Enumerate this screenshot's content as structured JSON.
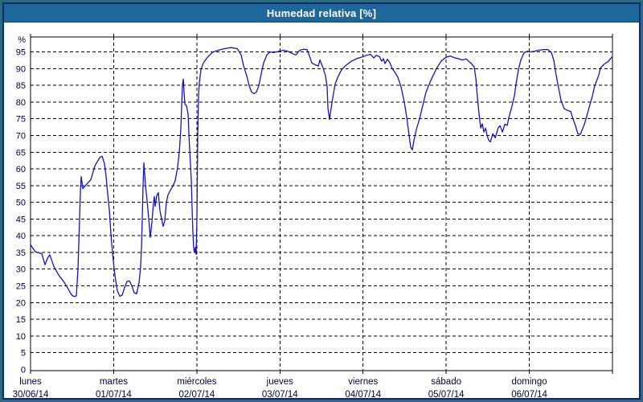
{
  "window": {
    "title": "Humedad relativa [%]"
  },
  "colors": {
    "titlebar_bg": "#1d689b",
    "frame_teal": "#2c6b7d",
    "inner_border_navy": "#0b2a7a",
    "plot_line": "#1414bb",
    "grid": "#000000",
    "label_text": "#000040",
    "title_text": "#ffffff"
  },
  "chart_data": {
    "type": "line",
    "title": "Humedad relativa [%]",
    "y_axis": {
      "unit_label": "%",
      "tick_min": 0,
      "tick_max": 95,
      "tick_step": 5,
      "ylim": [
        0,
        99.5
      ],
      "grid": "dashed"
    },
    "x_axis": {
      "xlim_days": [
        0,
        7
      ],
      "grid": "dashed",
      "days": [
        {
          "name": "lunes",
          "date": "30/06/14"
        },
        {
          "name": "martes",
          "date": "01/07/14"
        },
        {
          "name": "miércoles",
          "date": "02/07/14"
        },
        {
          "name": "jueves",
          "date": "03/07/14"
        },
        {
          "name": "viernes",
          "date": "04/07/14"
        },
        {
          "name": "sábado",
          "date": "05/07/14"
        },
        {
          "name": "domingo",
          "date": "06/07/14"
        }
      ]
    },
    "series": [
      {
        "name": "humedad_relativa_pct",
        "color": "#1414bb",
        "points": [
          [
            0,
            37.3
          ],
          [
            0.029,
            36.2
          ],
          [
            0.058,
            35.2
          ],
          [
            0.097,
            34.9
          ],
          [
            0.135,
            34.6
          ],
          [
            0.174,
            31.3
          ],
          [
            0.203,
            33.2
          ],
          [
            0.232,
            34.3
          ],
          [
            0.28,
            30.8
          ],
          [
            0.338,
            28.2
          ],
          [
            0.406,
            26
          ],
          [
            0.454,
            24
          ],
          [
            0.493,
            22.3
          ],
          [
            0.522,
            21.8
          ],
          [
            0.551,
            22
          ],
          [
            0.57,
            30
          ],
          [
            0.59,
            45
          ],
          [
            0.599,
            53
          ],
          [
            0.609,
            57.7
          ],
          [
            0.629,
            54.1
          ],
          [
            0.667,
            55.2
          ],
          [
            0.725,
            56.8
          ],
          [
            0.773,
            60.9
          ],
          [
            0.832,
            63.4
          ],
          [
            0.861,
            63.8
          ],
          [
            0.89,
            61.4
          ],
          [
            0.909,
            57.7
          ],
          [
            0.928,
            52.5
          ],
          [
            0.948,
            47.5
          ],
          [
            0.967,
            40.5
          ],
          [
            0.986,
            34.9
          ],
          [
            1.006,
            30.1
          ],
          [
            1.025,
            26.5
          ],
          [
            1.044,
            23.5
          ],
          [
            1.073,
            21.9
          ],
          [
            1.102,
            22.2
          ],
          [
            1.131,
            24.5
          ],
          [
            1.16,
            26.3
          ],
          [
            1.189,
            26.5
          ],
          [
            1.218,
            25
          ],
          [
            1.247,
            22.9
          ],
          [
            1.276,
            22.6
          ],
          [
            1.305,
            26
          ],
          [
            1.325,
            30.8
          ],
          [
            1.334,
            36.3
          ],
          [
            1.344,
            45
          ],
          [
            1.354,
            55
          ],
          [
            1.363,
            61.8
          ],
          [
            1.383,
            55
          ],
          [
            1.402,
            50.5
          ],
          [
            1.421,
            45.2
          ],
          [
            1.441,
            39.5
          ],
          [
            1.46,
            44
          ],
          [
            1.479,
            50
          ],
          [
            1.489,
            51.7
          ],
          [
            1.499,
            48.8
          ],
          [
            1.518,
            52
          ],
          [
            1.537,
            52.9
          ],
          [
            1.557,
            47.5
          ],
          [
            1.576,
            45
          ],
          [
            1.595,
            42.8
          ],
          [
            1.615,
            44.5
          ],
          [
            1.634,
            50
          ],
          [
            1.653,
            52.2
          ],
          [
            1.682,
            53.6
          ],
          [
            1.711,
            54.8
          ],
          [
            1.74,
            56.5
          ],
          [
            1.769,
            60.5
          ],
          [
            1.789,
            65
          ],
          [
            1.808,
            72
          ],
          [
            1.818,
            79
          ],
          [
            1.827,
            85
          ],
          [
            1.837,
            86.9
          ],
          [
            1.847,
            83
          ],
          [
            1.856,
            79.4
          ],
          [
            1.876,
            78.9
          ],
          [
            1.895,
            76.5
          ],
          [
            1.905,
            70.5
          ],
          [
            1.914,
            65.7
          ],
          [
            1.934,
            56.8
          ],
          [
            1.943,
            48.1
          ],
          [
            1.953,
            40.9
          ],
          [
            1.963,
            36.1
          ],
          [
            1.972,
            35
          ],
          [
            1.982,
            36.5
          ],
          [
            1.992,
            34.4
          ],
          [
            2.001,
            45
          ],
          [
            2.006,
            57.7
          ],
          [
            2.011,
            70
          ],
          [
            2.021,
            81.8
          ],
          [
            2.03,
            85.7
          ],
          [
            2.05,
            89.7
          ],
          [
            2.079,
            91.7
          ],
          [
            2.127,
            93.4
          ],
          [
            2.195,
            95
          ],
          [
            2.272,
            95.6
          ],
          [
            2.34,
            96
          ],
          [
            2.408,
            96.3
          ],
          [
            2.485,
            96
          ],
          [
            2.533,
            94.1
          ],
          [
            2.562,
            90.9
          ],
          [
            2.601,
            87.8
          ],
          [
            2.63,
            84.9
          ],
          [
            2.659,
            83
          ],
          [
            2.688,
            82.5
          ],
          [
            2.717,
            83
          ],
          [
            2.746,
            84.9
          ],
          [
            2.775,
            88.5
          ],
          [
            2.804,
            91.7
          ],
          [
            2.843,
            94.1
          ],
          [
            2.881,
            95
          ],
          [
            2.92,
            94.8
          ],
          [
            2.959,
            95
          ],
          [
            2.997,
            95.3
          ],
          [
            3.046,
            95.5
          ],
          [
            3.094,
            95.2
          ],
          [
            3.143,
            94.6
          ],
          [
            3.191,
            94.1
          ],
          [
            3.239,
            95.5
          ],
          [
            3.287,
            95.8
          ],
          [
            3.326,
            95.7
          ],
          [
            3.355,
            93.8
          ],
          [
            3.384,
            91.7
          ],
          [
            3.423,
            91.2
          ],
          [
            3.461,
            90.8
          ],
          [
            3.481,
            92.6
          ],
          [
            3.519,
            90.2
          ],
          [
            3.548,
            87.8
          ],
          [
            3.568,
            84.5
          ],
          [
            3.577,
            78.2
          ],
          [
            3.597,
            74.8
          ],
          [
            3.616,
            78.2
          ],
          [
            3.635,
            81.3
          ],
          [
            3.664,
            85.4
          ],
          [
            3.693,
            87.3
          ],
          [
            3.742,
            89.7
          ],
          [
            3.79,
            90.9
          ],
          [
            3.858,
            92.2
          ],
          [
            3.925,
            93
          ],
          [
            3.993,
            93.5
          ],
          [
            4.041,
            94
          ],
          [
            4.09,
            94.3
          ],
          [
            4.128,
            93.2
          ],
          [
            4.157,
            94
          ],
          [
            4.196,
            93.6
          ],
          [
            4.225,
            92.2
          ],
          [
            4.244,
            93
          ],
          [
            4.264,
            91.5
          ],
          [
            4.293,
            92.8
          ],
          [
            4.322,
            91.8
          ],
          [
            4.351,
            90
          ],
          [
            4.38,
            89
          ],
          [
            4.418,
            87.5
          ],
          [
            4.457,
            84.5
          ],
          [
            4.496,
            80
          ],
          [
            4.525,
            75.5
          ],
          [
            4.554,
            70
          ],
          [
            4.573,
            66.5
          ],
          [
            4.593,
            65.7
          ],
          [
            4.612,
            68.5
          ],
          [
            4.641,
            71.8
          ],
          [
            4.68,
            75
          ],
          [
            4.709,
            78
          ],
          [
            4.757,
            83
          ],
          [
            4.825,
            87
          ],
          [
            4.883,
            90
          ],
          [
            4.941,
            92.3
          ],
          [
            4.999,
            93.4
          ],
          [
            5.047,
            93.8
          ],
          [
            5.096,
            93.3
          ],
          [
            5.144,
            93
          ],
          [
            5.192,
            92.6
          ],
          [
            5.241,
            92.9
          ],
          [
            5.27,
            92.2
          ],
          [
            5.299,
            91.6
          ],
          [
            5.337,
            90.5
          ],
          [
            5.357,
            87
          ],
          [
            5.376,
            81.3
          ],
          [
            5.395,
            76.5
          ],
          [
            5.415,
            72.2
          ],
          [
            5.434,
            73.5
          ],
          [
            5.453,
            71
          ],
          [
            5.473,
            72.2
          ],
          [
            5.492,
            70
          ],
          [
            5.511,
            68.6
          ],
          [
            5.531,
            68.1
          ],
          [
            5.56,
            70.5
          ],
          [
            5.589,
            69.3
          ],
          [
            5.627,
            72.4
          ],
          [
            5.647,
            72.9
          ],
          [
            5.676,
            71
          ],
          [
            5.705,
            73.4
          ],
          [
            5.734,
            73
          ],
          [
            5.753,
            75.3
          ],
          [
            5.792,
            78.9
          ],
          [
            5.821,
            82
          ],
          [
            5.84,
            85.4
          ],
          [
            5.869,
            89.7
          ],
          [
            5.898,
            92.6
          ],
          [
            5.937,
            94.8
          ],
          [
            5.975,
            95.2
          ],
          [
            6.014,
            95
          ],
          [
            6.062,
            95.2
          ],
          [
            6.111,
            95.5
          ],
          [
            6.169,
            95.7
          ],
          [
            6.227,
            95.7
          ],
          [
            6.265,
            94.8
          ],
          [
            6.294,
            92.5
          ],
          [
            6.323,
            88
          ],
          [
            6.343,
            85.4
          ],
          [
            6.381,
            80.5
          ],
          [
            6.42,
            78
          ],
          [
            6.459,
            77.5
          ],
          [
            6.497,
            77.2
          ],
          [
            6.526,
            74.9
          ],
          [
            6.555,
            72.9
          ],
          [
            6.584,
            70.5
          ],
          [
            6.613,
            70.3
          ],
          [
            6.662,
            73.3
          ],
          [
            6.691,
            75.8
          ],
          [
            6.72,
            78.4
          ],
          [
            6.758,
            81.8
          ],
          [
            6.787,
            85
          ],
          [
            6.816,
            86.8
          ],
          [
            6.836,
            88.1
          ],
          [
            6.855,
            90.2
          ],
          [
            6.903,
            91.4
          ],
          [
            6.952,
            92.2
          ],
          [
            6.99,
            93.4
          ]
        ]
      }
    ]
  }
}
